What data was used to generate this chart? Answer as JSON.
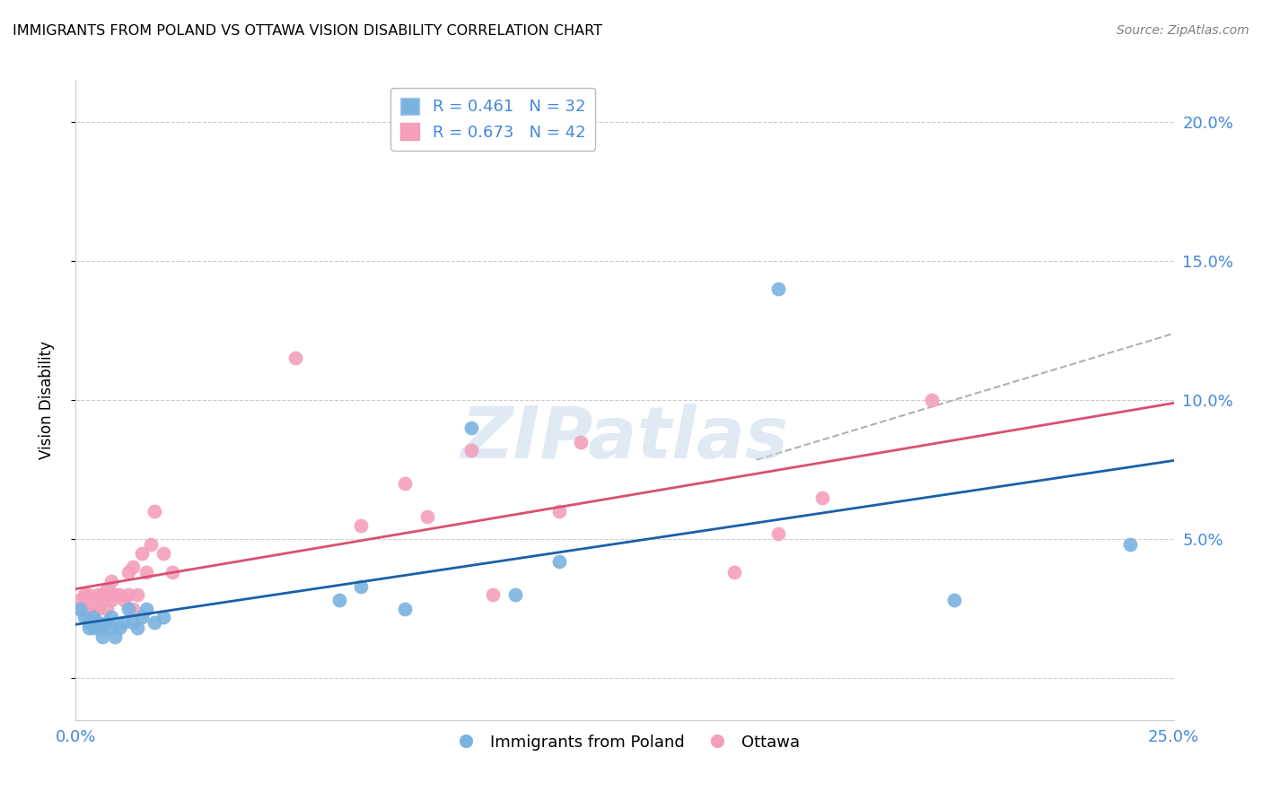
{
  "title": "IMMIGRANTS FROM POLAND VS OTTAWA VISION DISABILITY CORRELATION CHART",
  "source": "Source: ZipAtlas.com",
  "ylabel": "Vision Disability",
  "xlabel": "",
  "xlim": [
    0.0,
    0.25
  ],
  "ylim": [
    -0.015,
    0.215
  ],
  "yticks": [
    0.0,
    0.05,
    0.1,
    0.15,
    0.2
  ],
  "ytick_labels_right": [
    "",
    "5.0%",
    "10.0%",
    "15.0%",
    "20.0%"
  ],
  "xticks": [
    0.0,
    0.05,
    0.1,
    0.15,
    0.2,
    0.25
  ],
  "xtick_labels": [
    "0.0%",
    "",
    "",
    "",
    "",
    "25.0%"
  ],
  "blue_R": 0.461,
  "blue_N": 32,
  "pink_R": 0.673,
  "pink_N": 42,
  "blue_color": "#7ab3e0",
  "pink_color": "#f4a0bb",
  "blue_line_color": "#1a5fa8",
  "pink_line_color": "#d94f72",
  "blue_scatter_x": [
    0.001,
    0.002,
    0.003,
    0.003,
    0.004,
    0.004,
    0.005,
    0.005,
    0.006,
    0.006,
    0.007,
    0.008,
    0.008,
    0.009,
    0.01,
    0.011,
    0.012,
    0.013,
    0.014,
    0.015,
    0.016,
    0.018,
    0.02,
    0.06,
    0.065,
    0.075,
    0.09,
    0.1,
    0.11,
    0.16,
    0.2,
    0.24
  ],
  "blue_scatter_y": [
    0.025,
    0.022,
    0.02,
    0.018,
    0.018,
    0.022,
    0.018,
    0.02,
    0.015,
    0.018,
    0.02,
    0.018,
    0.022,
    0.015,
    0.018,
    0.02,
    0.025,
    0.02,
    0.018,
    0.022,
    0.025,
    0.02,
    0.022,
    0.028,
    0.033,
    0.025,
    0.09,
    0.03,
    0.042,
    0.14,
    0.028,
    0.048
  ],
  "pink_scatter_x": [
    0.001,
    0.001,
    0.002,
    0.002,
    0.003,
    0.003,
    0.004,
    0.004,
    0.005,
    0.005,
    0.006,
    0.006,
    0.007,
    0.007,
    0.008,
    0.008,
    0.009,
    0.01,
    0.011,
    0.012,
    0.012,
    0.013,
    0.013,
    0.014,
    0.015,
    0.016,
    0.017,
    0.018,
    0.02,
    0.022,
    0.05,
    0.065,
    0.075,
    0.08,
    0.09,
    0.095,
    0.11,
    0.115,
    0.15,
    0.16,
    0.17,
    0.195
  ],
  "pink_scatter_y": [
    0.025,
    0.028,
    0.03,
    0.025,
    0.025,
    0.03,
    0.025,
    0.028,
    0.03,
    0.025,
    0.028,
    0.03,
    0.025,
    0.032,
    0.035,
    0.028,
    0.03,
    0.03,
    0.028,
    0.03,
    0.038,
    0.025,
    0.04,
    0.03,
    0.045,
    0.038,
    0.048,
    0.06,
    0.045,
    0.038,
    0.115,
    0.055,
    0.07,
    0.058,
    0.082,
    0.03,
    0.06,
    0.085,
    0.038,
    0.052,
    0.065,
    0.1
  ],
  "watermark_text": "ZIPatlas",
  "background_color": "#ffffff"
}
